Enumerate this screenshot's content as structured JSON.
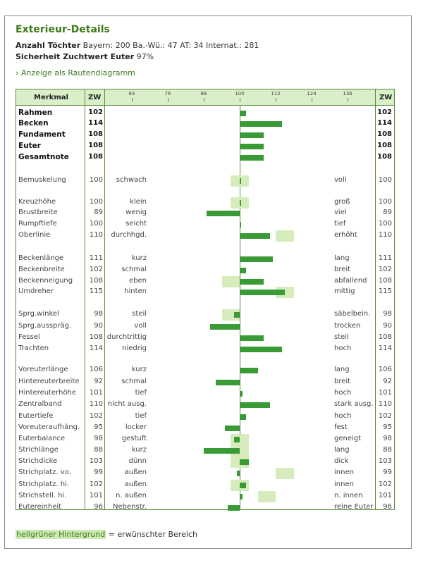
{
  "title": "Exterieur-Details",
  "info": {
    "toechter_label": "Anzahl Töchter",
    "toechter_text": " Bayern: 200   Ba.-Wü.: 47   AT: 34   Internat.: 281",
    "sicherheit_label": "Sicherheit Zuchtwert Euter",
    "sicherheit_value": " 97%"
  },
  "link": "› Anzeige als Rautendiagramm",
  "table": {
    "headers": {
      "merkmal": "Merkmal",
      "zw": "ZW",
      "zw2": "ZW"
    },
    "ticks": [
      "64",
      "76",
      "88",
      "100",
      "112",
      "124",
      "136"
    ],
    "rows": [
      {
        "name": "Rahmen",
        "zw": "102",
        "left": "",
        "right": "",
        "bold": true,
        "value": 102,
        "desired": null
      },
      {
        "name": "Becken",
        "zw": "114",
        "left": "",
        "right": "",
        "bold": true,
        "value": 114,
        "desired": null
      },
      {
        "name": "Fundament",
        "zw": "108",
        "left": "",
        "right": "",
        "bold": true,
        "value": 108,
        "desired": null
      },
      {
        "name": "Euter",
        "zw": "108",
        "left": "",
        "right": "",
        "bold": true,
        "value": 108,
        "desired": null
      },
      {
        "name": "Gesamtnote",
        "zw": "108",
        "left": "",
        "right": "",
        "bold": true,
        "value": 108,
        "desired": null
      },
      {
        "name": "Bemuskelung",
        "zw": "100",
        "left": "schwach",
        "right": "voll",
        "bold": false,
        "value": 100,
        "desired": [
          97,
          103
        ]
      },
      {
        "name": "Kreuzhöhe",
        "zw": "100",
        "left": "klein",
        "right": "groß",
        "bold": false,
        "value": 100,
        "desired": [
          97,
          103
        ]
      },
      {
        "name": "Brustbreite",
        "zw": "89",
        "left": "wenig",
        "right": "viel",
        "bold": false,
        "value": 89,
        "desired": null
      },
      {
        "name": "Rumpftiefe",
        "zw": "100",
        "left": "seicht",
        "right": "tief",
        "bold": false,
        "value": 100,
        "desired": null
      },
      {
        "name": "Oberlinie",
        "zw": "110",
        "left": "durchhgd.",
        "right": "erhöht",
        "bold": false,
        "value": 110,
        "desired": [
          112,
          118
        ]
      },
      {
        "name": "Beckenlänge",
        "zw": "111",
        "left": "kurz",
        "right": "lang",
        "bold": false,
        "value": 111,
        "desired": null
      },
      {
        "name": "Beckenbreite",
        "zw": "102",
        "left": "schmal",
        "right": "breit",
        "bold": false,
        "value": 102,
        "desired": null
      },
      {
        "name": "Beckenneigung",
        "zw": "108",
        "left": "eben",
        "right": "abfallend",
        "bold": false,
        "value": 108,
        "desired": [
          94,
          100
        ]
      },
      {
        "name": "Umdreher",
        "zw": "115",
        "left": "hinten",
        "right": "mittig",
        "bold": false,
        "value": 115,
        "desired": [
          112,
          118
        ]
      },
      {
        "name": "Sprg.winkel",
        "zw": "98",
        "left": "steil",
        "right": "säbelbein.",
        "bold": false,
        "value": 98,
        "desired": [
          94,
          100
        ]
      },
      {
        "name": "Sprg.ausspräg.",
        "zw": "90",
        "left": "voll",
        "right": "trocken",
        "bold": false,
        "value": 90,
        "desired": null
      },
      {
        "name": "Fessel",
        "zw": "108",
        "left": "durchtrittig",
        "right": "steil",
        "bold": false,
        "value": 108,
        "desired": null
      },
      {
        "name": "Trachten",
        "zw": "114",
        "left": "niedrig",
        "right": "hoch",
        "bold": false,
        "value": 114,
        "desired": null
      },
      {
        "name": "Voreuterlänge",
        "zw": "106",
        "left": "kurz",
        "right": "lang",
        "bold": false,
        "value": 106,
        "desired": null
      },
      {
        "name": "Hintereuterbreite",
        "zw": "92",
        "left": "schmal",
        "right": "breit",
        "bold": false,
        "value": 92,
        "desired": null
      },
      {
        "name": "Hintereuterhöhe",
        "zw": "101",
        "left": "tief",
        "right": "hoch",
        "bold": false,
        "value": 101,
        "desired": null
      },
      {
        "name": "Zentralband",
        "zw": "110",
        "left": "nicht ausg.",
        "right": "stark ausg.",
        "bold": false,
        "value": 110,
        "desired": null
      },
      {
        "name": "Eutertiefe",
        "zw": "102",
        "left": "tief",
        "right": "hoch",
        "bold": false,
        "value": 102,
        "desired": null
      },
      {
        "name": "Voreuteraufhäng.",
        "zw": "95",
        "left": "locker",
        "right": "fest",
        "bold": false,
        "value": 95,
        "desired": null
      },
      {
        "name": "Euterbalance",
        "zw": "98",
        "left": "gestuft",
        "right": "geneigt",
        "bold": false,
        "value": 98,
        "desired": [
          97,
          103
        ]
      },
      {
        "name": "Strichlänge",
        "zw": "88",
        "left": "kurz",
        "right": "lang",
        "bold": false,
        "value": 88,
        "desired": [
          97,
          103
        ]
      },
      {
        "name": "Strichdicke",
        "zw": "103",
        "left": "dünn",
        "right": "dick",
        "bold": false,
        "value": 103,
        "desired": [
          97,
          103
        ]
      },
      {
        "name": "Strichplatz. vo.",
        "zw": "99",
        "left": "außen",
        "right": "innen",
        "bold": false,
        "value": 99,
        "desired": [
          112,
          118
        ]
      },
      {
        "name": "Strichplatz. hi.",
        "zw": "102",
        "left": "außen",
        "right": "innen",
        "bold": false,
        "value": 102,
        "desired": [
          97,
          103
        ]
      },
      {
        "name": "Strichstell. hi.",
        "zw": "101",
        "left": "n. außen",
        "right": "n. innen",
        "bold": false,
        "value": 101,
        "desired": [
          106,
          112
        ]
      },
      {
        "name": "Eutereinheit",
        "zw": "96",
        "left": "Nebenstr.",
        "right": "reine Euter",
        "bold": false,
        "value": 96,
        "desired": null
      }
    ]
  },
  "legend": {
    "highlight": "hellgrüner Hintergrund",
    "text": " = erwünschter Bereich"
  },
  "colors": {
    "accent": "#3d7a1a",
    "bar": "#3a9a35",
    "desired": "#d6ecbc",
    "header": "#d9efc9"
  }
}
